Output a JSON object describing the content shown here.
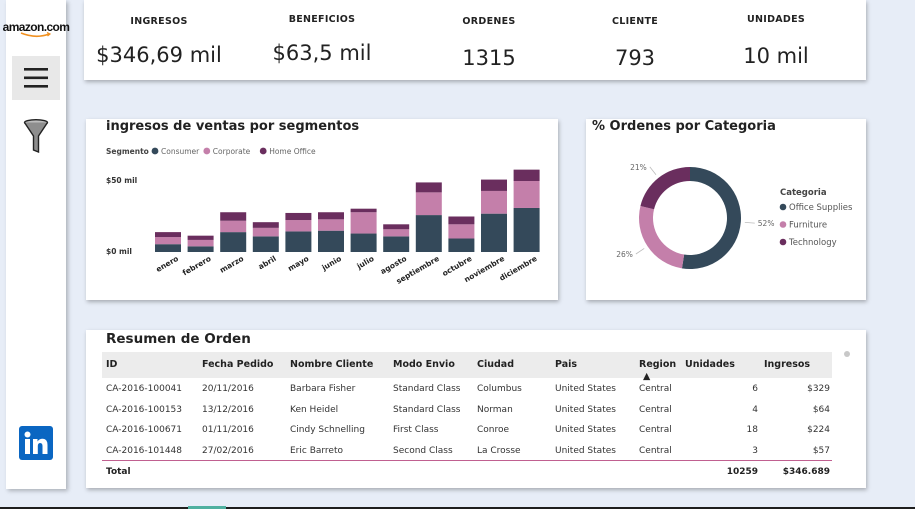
{
  "sidebar": {
    "logo_text": "amazon.com",
    "colors": {
      "linkedin": "#0a66c2"
    }
  },
  "kpis": [
    {
      "label": "INGRESOS",
      "value": "$346,69 mil"
    },
    {
      "label": "BENEFICIOS",
      "value": "$63,5 mil"
    },
    {
      "label": "ORDENES",
      "value": "1315"
    },
    {
      "label": "CLIENTE",
      "value": "793"
    },
    {
      "label": "UNIDADES",
      "value": "10 mil"
    }
  ],
  "segment_chart": {
    "title": "ingresos de ventas por segmentos",
    "legend_title": "Segmento",
    "y_ticks": [
      "$50 mil",
      "$0 mil"
    ]
  },
  "category_chart": {
    "title": "% Ordenes por Categoria",
    "legend_title": "Categoria"
  },
  "chart_data": [
    {
      "type": "bar",
      "stacked": true,
      "title": "ingresos de ventas por segmentos",
      "legend_title": "Segmento",
      "categories": [
        "enero",
        "febrero",
        "marzo",
        "abril",
        "mayo",
        "junio",
        "julio",
        "agosto",
        "septiembre",
        "octubre",
        "noviembre",
        "diciembre"
      ],
      "series": [
        {
          "name": "Consumer",
          "color": "#34495a",
          "values": [
            5.5,
            4,
            14,
            11,
            14.5,
            15,
            13,
            11,
            26,
            9.5,
            27,
            31
          ]
        },
        {
          "name": "Corporate",
          "color": "#c47faa",
          "values": [
            5,
            4.5,
            8,
            6,
            8,
            8,
            15,
            5,
            16,
            10,
            16,
            19
          ]
        },
        {
          "name": "Home Office",
          "color": "#6a2e5e",
          "values": [
            3.5,
            3,
            6,
            4,
            5,
            5,
            2.5,
            3.5,
            7,
            5.5,
            8,
            8
          ]
        }
      ],
      "ylim": [
        0,
        60
      ],
      "y_tick_labels": [
        "$50 mil",
        "$0 mil"
      ],
      "y_tick_values": [
        50,
        0
      ],
      "legend_position": "top-left"
    },
    {
      "type": "pie",
      "donut": true,
      "title": "% Ordenes por Categoria",
      "legend_title": "Categoria",
      "slices": [
        {
          "name": "Office Supplies",
          "value": 52,
          "label": "52%",
          "color": "#34495a"
        },
        {
          "name": "Furniture",
          "value": 26,
          "label": "26%",
          "color": "#c47faa"
        },
        {
          "name": "Technology",
          "value": 21,
          "label": "21%",
          "color": "#6a2e5e"
        }
      ],
      "legend_position": "right"
    }
  ],
  "table": {
    "title": "Resumen de Orden",
    "columns": [
      "ID",
      "Fecha Pedido",
      "Nombre Cliente",
      "Modo Envio",
      "Ciudad",
      "Pais",
      "Region",
      "Unidades",
      "Ingresos"
    ],
    "sorted_column": "Region",
    "rows": [
      [
        "CA-2016-100041",
        "20/11/2016",
        "Barbara Fisher",
        "Standard Class",
        "Columbus",
        "United States",
        "Central",
        "6",
        "$329"
      ],
      [
        "CA-2016-100153",
        "13/12/2016",
        "Ken Heidel",
        "Standard Class",
        "Norman",
        "United States",
        "Central",
        "4",
        "$64"
      ],
      [
        "CA-2016-100671",
        "01/11/2016",
        "Cindy Schnelling",
        "First Class",
        "Conroe",
        "United States",
        "Central",
        "18",
        "$224"
      ],
      [
        "CA-2016-101448",
        "27/02/2016",
        "Eric Barreto",
        "Second Class",
        "La Crosse",
        "United States",
        "Central",
        "3",
        "$57"
      ]
    ],
    "total_label": "Total",
    "total_units": "10259",
    "total_revenue": "$346.689"
  }
}
